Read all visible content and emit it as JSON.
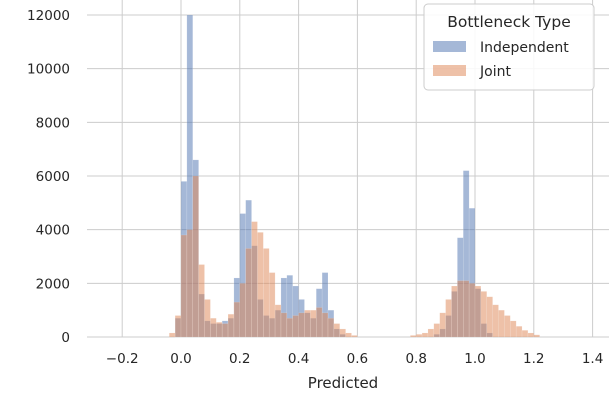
{
  "chart_data": {
    "type": "bar",
    "title": "",
    "xlabel": "Predicted",
    "ylabel": "",
    "xlim": [
      -0.33,
      1.42
    ],
    "ylim": [
      0,
      12500
    ],
    "grid": true,
    "legend_placement": "top-right",
    "bin_width": 0.02,
    "xticks": [
      -0.2,
      0.0,
      0.2,
      0.4,
      0.6,
      0.8,
      1.0,
      1.2,
      1.4
    ],
    "xtick_labels": [
      "−0.2",
      "0.0",
      "0.2",
      "0.4",
      "0.6",
      "0.8",
      "1.0",
      "1.2",
      "1.4"
    ],
    "yticks": [
      0,
      2000,
      4000,
      6000,
      8000,
      10000,
      12000
    ],
    "ytick_labels": [
      "0",
      "2000",
      "4000",
      "6000",
      "8000",
      "10000",
      "12000"
    ],
    "legend_title": "Bottleneck Type",
    "series": [
      {
        "name": "Independent",
        "color": "#4c72b0",
        "bins": [
          [
            -0.02,
            700
          ],
          [
            0.0,
            5800
          ],
          [
            0.02,
            12000
          ],
          [
            0.04,
            6600
          ],
          [
            0.06,
            1600
          ],
          [
            0.08,
            600
          ],
          [
            0.1,
            500
          ],
          [
            0.12,
            500
          ],
          [
            0.14,
            600
          ],
          [
            0.16,
            700
          ],
          [
            0.18,
            2200
          ],
          [
            0.2,
            4600
          ],
          [
            0.22,
            5100
          ],
          [
            0.24,
            3400
          ],
          [
            0.26,
            1400
          ],
          [
            0.28,
            800
          ],
          [
            0.3,
            700
          ],
          [
            0.32,
            1000
          ],
          [
            0.34,
            2200
          ],
          [
            0.36,
            2300
          ],
          [
            0.38,
            1900
          ],
          [
            0.4,
            1400
          ],
          [
            0.42,
            900
          ],
          [
            0.44,
            700
          ],
          [
            0.46,
            1800
          ],
          [
            0.48,
            2400
          ],
          [
            0.5,
            1000
          ],
          [
            0.52,
            300
          ],
          [
            0.54,
            100
          ],
          [
            0.86,
            100
          ],
          [
            0.88,
            300
          ],
          [
            0.9,
            800
          ],
          [
            0.92,
            1700
          ],
          [
            0.94,
            3700
          ],
          [
            0.96,
            6200
          ],
          [
            0.98,
            4800
          ],
          [
            1.0,
            1800
          ],
          [
            1.02,
            500
          ],
          [
            1.04,
            150
          ]
        ]
      },
      {
        "name": "Joint",
        "color": "#dd8452",
        "bins": [
          [
            -0.04,
            150
          ],
          [
            -0.02,
            800
          ],
          [
            0.0,
            3800
          ],
          [
            0.02,
            4000
          ],
          [
            0.04,
            6000
          ],
          [
            0.06,
            2700
          ],
          [
            0.08,
            1400
          ],
          [
            0.1,
            700
          ],
          [
            0.12,
            550
          ],
          [
            0.14,
            500
          ],
          [
            0.16,
            850
          ],
          [
            0.18,
            1300
          ],
          [
            0.2,
            2000
          ],
          [
            0.22,
            3300
          ],
          [
            0.24,
            4300
          ],
          [
            0.26,
            3900
          ],
          [
            0.28,
            3300
          ],
          [
            0.3,
            2400
          ],
          [
            0.32,
            1200
          ],
          [
            0.34,
            900
          ],
          [
            0.36,
            700
          ],
          [
            0.38,
            800
          ],
          [
            0.4,
            900
          ],
          [
            0.42,
            1000
          ],
          [
            0.44,
            1000
          ],
          [
            0.46,
            1100
          ],
          [
            0.48,
            900
          ],
          [
            0.5,
            700
          ],
          [
            0.52,
            500
          ],
          [
            0.54,
            300
          ],
          [
            0.56,
            150
          ],
          [
            0.58,
            60
          ],
          [
            0.78,
            60
          ],
          [
            0.8,
            100
          ],
          [
            0.82,
            150
          ],
          [
            0.84,
            300
          ],
          [
            0.86,
            500
          ],
          [
            0.88,
            900
          ],
          [
            0.9,
            1400
          ],
          [
            0.92,
            1900
          ],
          [
            0.94,
            2100
          ],
          [
            0.96,
            2100
          ],
          [
            0.98,
            2000
          ],
          [
            1.0,
            1900
          ],
          [
            1.02,
            1700
          ],
          [
            1.04,
            1500
          ],
          [
            1.06,
            1200
          ],
          [
            1.08,
            1000
          ],
          [
            1.1,
            800
          ],
          [
            1.12,
            600
          ],
          [
            1.14,
            400
          ],
          [
            1.16,
            250
          ],
          [
            1.18,
            150
          ],
          [
            1.2,
            80
          ]
        ]
      }
    ]
  }
}
